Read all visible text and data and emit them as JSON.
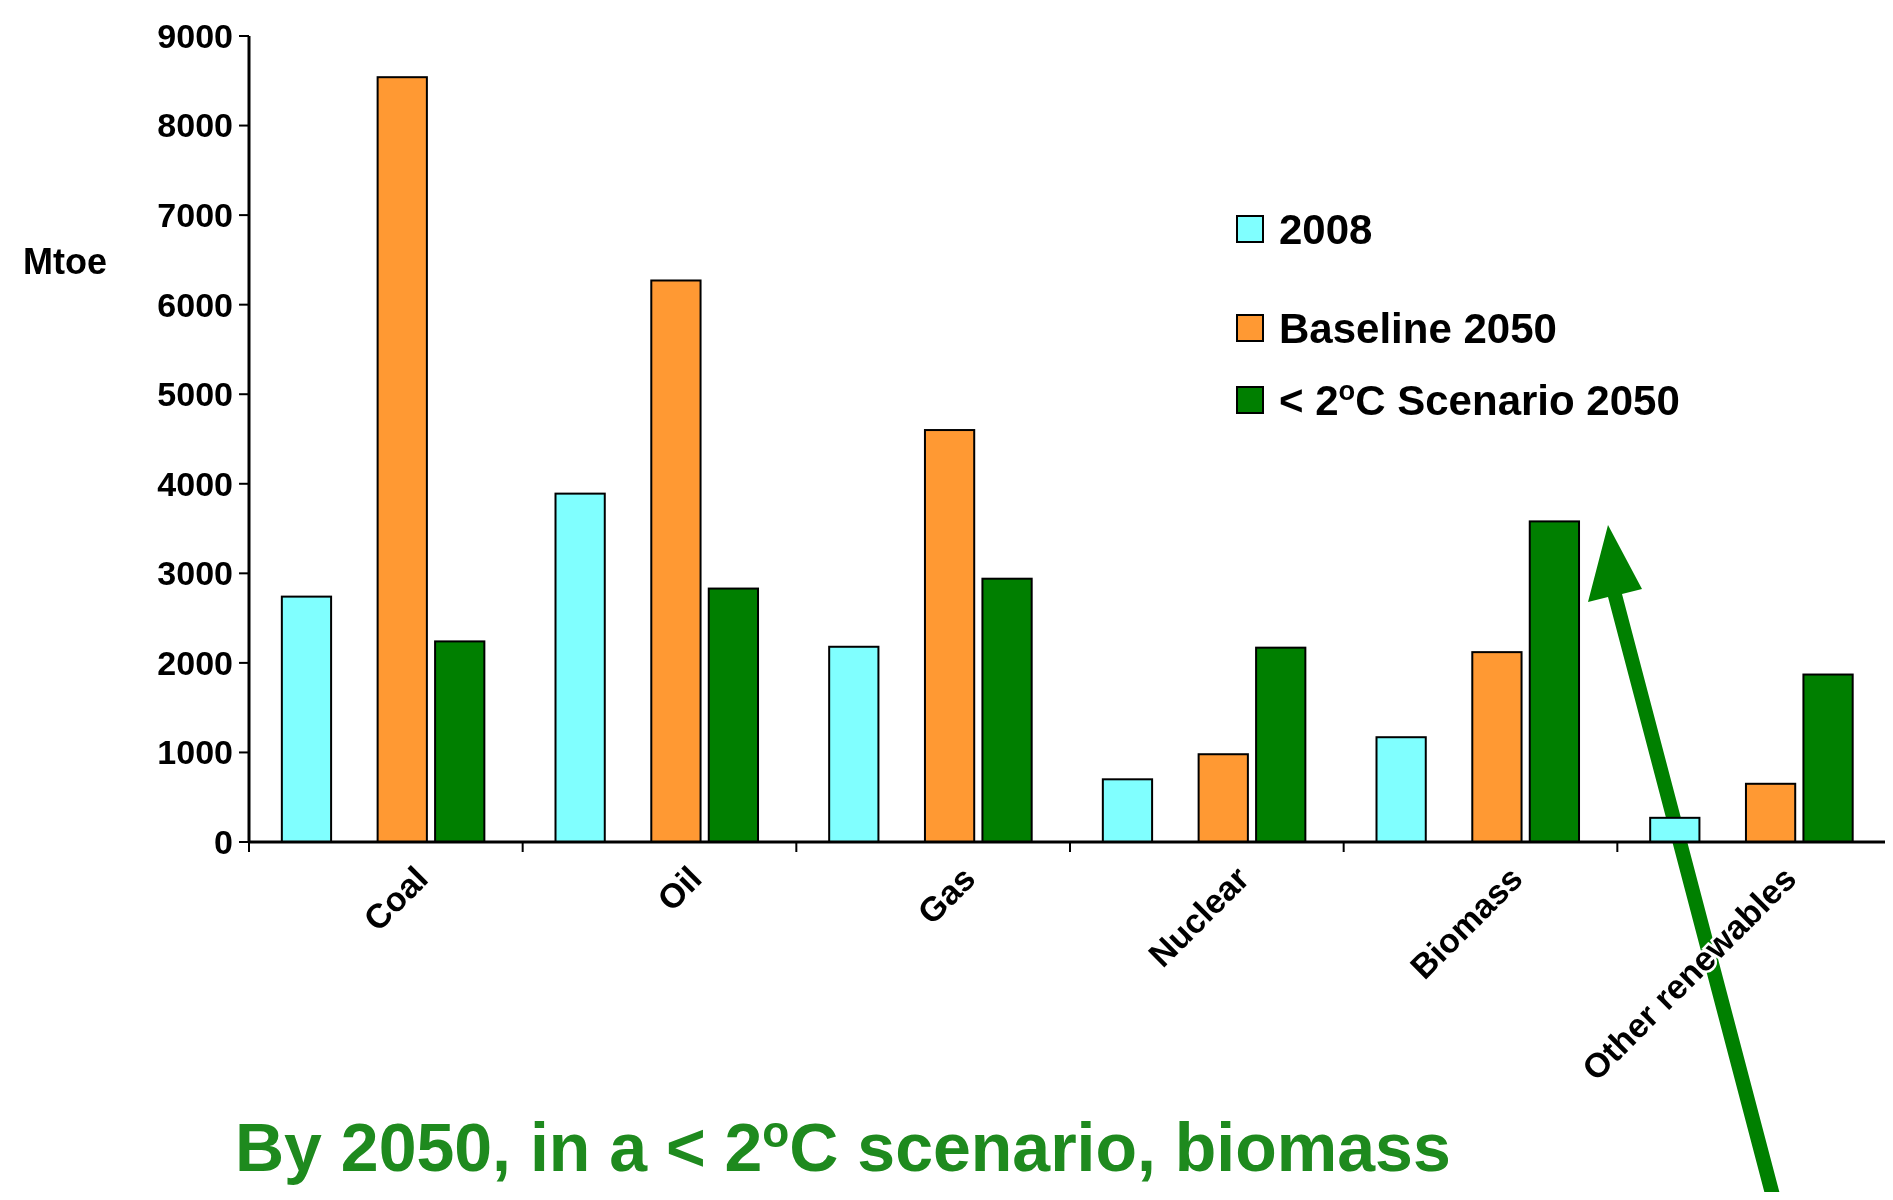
{
  "chart_data": {
    "type": "bar",
    "ylabel": "Mtoe",
    "categories": [
      "Coal",
      "Oil",
      "Gas",
      "Nuclear",
      "Biomass",
      "Other renewables"
    ],
    "series": [
      {
        "name": "2008",
        "color": "#80ffff",
        "values": [
          2740,
          3890,
          2180,
          700,
          1170,
          270
        ]
      },
      {
        "name": "Baseline 2050",
        "color": "#ff9933",
        "values": [
          8540,
          6270,
          4600,
          980,
          2120,
          650
        ]
      },
      {
        "name": "< 2$^{o}$C Scenario 2050",
        "color": "#007f00",
        "values": [
          2240,
          2830,
          2940,
          2170,
          3580,
          1870
        ]
      }
    ],
    "ylim": [
      0,
      9000
    ],
    "yticks": [
      0,
      1000,
      2000,
      3000,
      4000,
      5000,
      6000,
      7000,
      8000,
      9000
    ],
    "grid": false,
    "legend": "top right",
    "annotations": [
      "By 2050, in a < 2$^{o}$C scenario, biomass"
    ]
  }
}
